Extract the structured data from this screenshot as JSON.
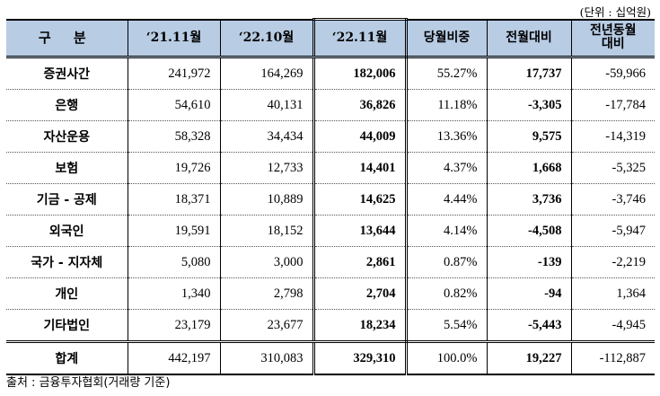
{
  "unit_note": "(단위 : 십억원)",
  "header": {
    "category": "구 분",
    "col1": "‘21.11월",
    "col2": "‘22.10월",
    "col3": "‘22.11월",
    "col4": "당월비중",
    "col5": "전월대비",
    "col6_line1": "전년동월",
    "col6_line2": "대비"
  },
  "rows": [
    {
      "label": "증권사간",
      "v1": "241,972",
      "v2": "164,269",
      "v3": "182,006",
      "share": "55.27%",
      "mom": "17,737",
      "yoy": "-59,966"
    },
    {
      "label": "은행",
      "v1": "54,610",
      "v2": "40,131",
      "v3": "36,826",
      "share": "11.18%",
      "mom": "-3,305",
      "yoy": "-17,784"
    },
    {
      "label": "자산운용",
      "v1": "58,328",
      "v2": "34,434",
      "v3": "44,009",
      "share": "13.36%",
      "mom": "9,575",
      "yoy": "-14,319"
    },
    {
      "label": "보험",
      "v1": "19,726",
      "v2": "12,733",
      "v3": "14,401",
      "share": "4.37%",
      "mom": "1,668",
      "yoy": "-5,325"
    },
    {
      "label": "기금 - 공제",
      "v1": "18,371",
      "v2": "10,889",
      "v3": "14,625",
      "share": "4.44%",
      "mom": "3,736",
      "yoy": "-3,746"
    },
    {
      "label": "외국인",
      "v1": "19,591",
      "v2": "18,152",
      "v3": "13,644",
      "share": "4.14%",
      "mom": "-4,508",
      "yoy": "-5,947"
    },
    {
      "label": "국가 - 지자체",
      "v1": "5,080",
      "v2": "3,000",
      "v3": "2,861",
      "share": "0.87%",
      "mom": "-139",
      "yoy": "-2,219"
    },
    {
      "label": "개인",
      "v1": "1,340",
      "v2": "2,798",
      "v3": "2,704",
      "share": "0.82%",
      "mom": "-94",
      "yoy": "1,364"
    },
    {
      "label": "기타법인",
      "v1": "23,179",
      "v2": "23,677",
      "v3": "18,234",
      "share": "5.54%",
      "mom": "-5,443",
      "yoy": "-4,945"
    }
  ],
  "total": {
    "label": "합계",
    "v1": "442,197",
    "v2": "310,083",
    "v3": "329,310",
    "share": "100.0%",
    "mom": "19,227",
    "yoy": "-112,887"
  },
  "source": "출처 : 금융투자협회(거래량 기준)"
}
